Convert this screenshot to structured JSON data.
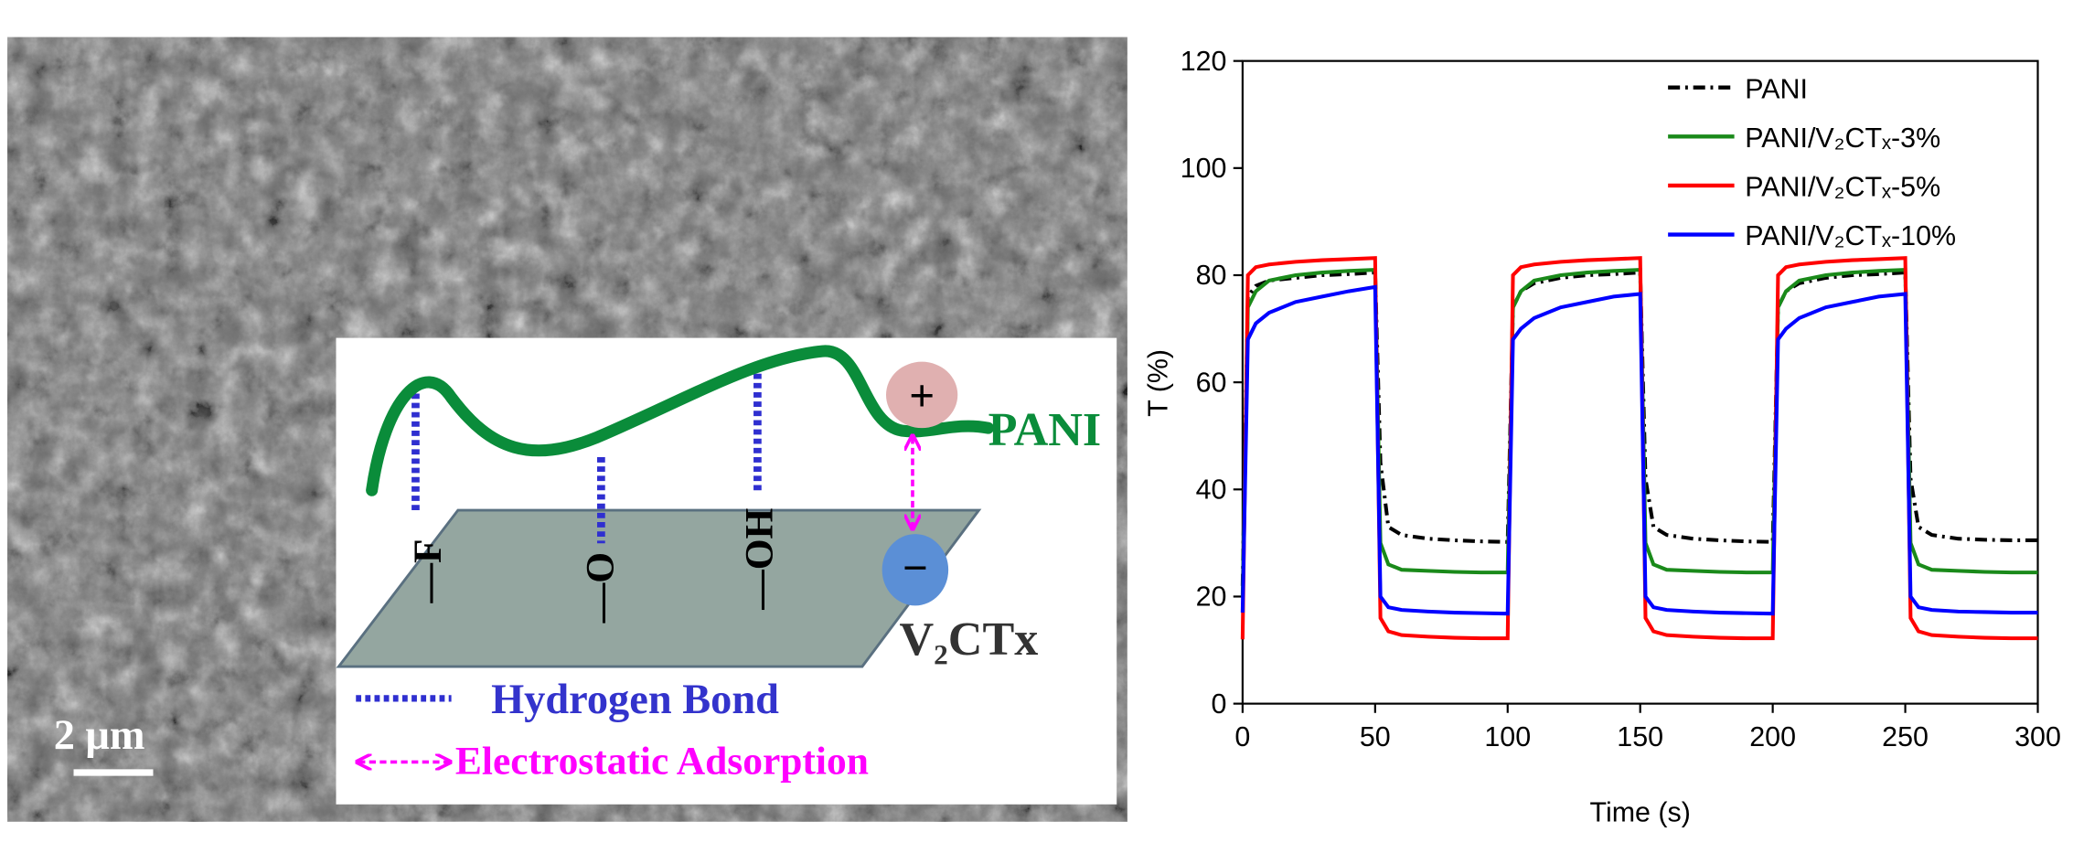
{
  "figure_a": {
    "scale_bar": "2 μm",
    "polymer": "PANI",
    "substrate": "V₂CTx",
    "groups": [
      "—F",
      "—O",
      "—OH"
    ],
    "positive": "+",
    "negative": "−",
    "legend": [
      "Hydrogen Bond",
      "Electrostatic Adsorption"
    ]
  },
  "chart_data": {
    "type": "line",
    "xlabel": "Time (s)",
    "ylabel": "T (%)",
    "x": [
      0,
      2,
      5,
      10,
      20,
      30,
      40,
      50,
      52,
      55,
      60,
      70,
      80,
      90,
      100,
      102,
      105,
      110,
      120,
      130,
      140,
      150,
      152,
      155,
      160,
      170,
      180,
      190,
      200,
      202,
      205,
      210,
      220,
      230,
      240,
      250,
      252,
      255,
      260,
      270,
      280,
      290,
      300
    ],
    "xlim": [
      0,
      300
    ],
    "xticks": [
      0,
      50,
      100,
      150,
      200,
      250,
      300
    ],
    "ylim": [
      0,
      120
    ],
    "yticks": [
      0,
      20,
      40,
      60,
      80,
      100,
      120
    ],
    "legend": "upper right",
    "series": [
      {
        "name": "PANI",
        "color": "#000000",
        "linestyle": "dashdot",
        "values": [
          22,
          76,
          78,
          79,
          79.5,
          80,
          80.2,
          80.5,
          45,
          33,
          31.5,
          30.8,
          30.5,
          30.3,
          30.2,
          74,
          77,
          78.5,
          79.5,
          80,
          80.2,
          80.5,
          42,
          33,
          31.5,
          30.8,
          30.5,
          30.3,
          30.2,
          74,
          77,
          78.5,
          79.5,
          80,
          80.2,
          80.5,
          42,
          33,
          31.5,
          30.8,
          30.6,
          30.5,
          30.5
        ]
      },
      {
        "name": "PANI/V₂CTₓ-3%",
        "color": "#1a8a1a",
        "linestyle": "solid",
        "values": [
          20,
          74,
          77,
          79,
          80,
          80.5,
          80.8,
          81,
          30,
          26,
          25,
          24.8,
          24.6,
          24.5,
          24.5,
          74,
          77,
          79,
          80,
          80.5,
          80.8,
          81,
          30,
          26,
          25,
          24.8,
          24.6,
          24.5,
          24.5,
          74,
          77,
          79,
          80,
          80.5,
          80.8,
          81,
          30,
          26,
          25,
          24.8,
          24.6,
          24.5,
          24.5
        ]
      },
      {
        "name": "PANI/V₂CTₓ-5%",
        "color": "#ff0000",
        "linestyle": "solid",
        "values": [
          12,
          80,
          81.5,
          82,
          82.5,
          82.8,
          83,
          83.2,
          16,
          13.5,
          12.8,
          12.5,
          12.3,
          12.2,
          12.2,
          80,
          81.5,
          82,
          82.5,
          82.8,
          83,
          83.2,
          16,
          13.5,
          12.8,
          12.5,
          12.3,
          12.2,
          12.2,
          80,
          81.5,
          82,
          82.5,
          82.8,
          83,
          83.2,
          16,
          13.5,
          12.8,
          12.5,
          12.3,
          12.2,
          12.2
        ]
      },
      {
        "name": "PANI/V₂CTₓ-10%",
        "color": "#0000ff",
        "linestyle": "solid",
        "values": [
          17,
          68,
          71,
          73,
          75,
          76,
          77,
          77.8,
          20,
          18,
          17.5,
          17.2,
          17,
          16.9,
          16.8,
          68,
          70,
          72,
          74,
          75,
          76,
          76.5,
          20,
          18,
          17.5,
          17.2,
          17,
          16.9,
          16.8,
          68,
          70,
          72,
          74,
          75,
          76,
          76.5,
          20,
          18,
          17.5,
          17.2,
          17.1,
          17,
          17
        ]
      }
    ]
  }
}
